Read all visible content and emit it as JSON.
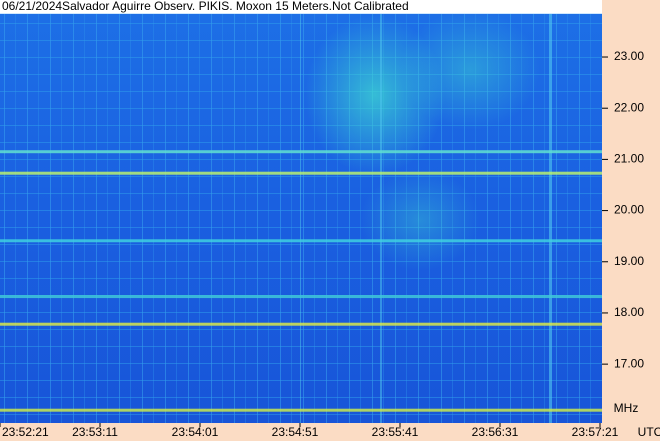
{
  "chart_data": {
    "type": "spectrogram",
    "title": "06/21/2024Salvador Aguirre Observ. PIKIS. Moxon 15 Meters.Not Calibrated",
    "ylabel": "MHz",
    "xlabel": "UTC",
    "x_labels": [
      "23:52:21",
      "23:53:11",
      "23:54:01",
      "23:54:51",
      "23:55:41",
      "23:56:31",
      "23:57:21"
    ],
    "ylim": [
      15.85,
      23.86
    ],
    "yticks": [
      {
        "value": 17,
        "label": "17.00"
      },
      {
        "value": 18,
        "label": "18.00"
      },
      {
        "value": 19,
        "label": "19.00"
      },
      {
        "value": 20,
        "label": "20.00"
      },
      {
        "value": 21,
        "label": "21.00"
      },
      {
        "value": 22,
        "label": "22.00"
      },
      {
        "value": 23,
        "label": "23.00"
      }
    ],
    "band_frequencies": [
      17.78,
      20.73,
      21.15,
      16.1,
      19.41,
      18.32
    ],
    "band_colors": [
      "#d8e84a",
      "#b8f070",
      "#60e0d0",
      "#c8e850",
      "#40d0e0",
      "#40c8d8"
    ]
  }
}
